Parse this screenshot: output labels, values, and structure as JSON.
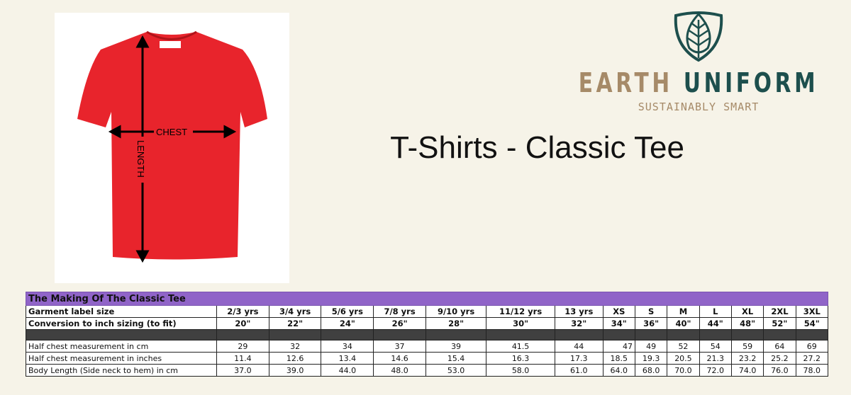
{
  "product_title": "T-Shirts - Classic Tee",
  "brand": {
    "name_part1": "EARTH",
    "name_part2": "UNIFORM",
    "tagline": "SUSTAINABLY SMART",
    "colors": {
      "tan": "#a68a68",
      "teal": "#1d4f4d"
    }
  },
  "garment_image": {
    "chest_label": "CHEST",
    "length_label": "LENGTH",
    "shirt_color": "#e8242c"
  },
  "table": {
    "caption": "The Making Of The Classic Tee",
    "header_color": "#9064c8",
    "rows": [
      {
        "label": "Garment label size",
        "bold": true,
        "values": [
          "2/3 yrs",
          "3/4 yrs",
          "5/6 yrs",
          "7/8 yrs",
          "9/10 yrs",
          "11/12 yrs",
          "13 yrs",
          "XS",
          "S",
          "M",
          "L",
          "XL",
          "2XL",
          "3XL"
        ]
      },
      {
        "label": "Conversion to inch sizing (to fit)",
        "bold": true,
        "values": [
          "20\"",
          "22\"",
          "24\"",
          "26\"",
          "28\"",
          "30\"",
          "32\"",
          "34\"",
          "36\"",
          "40\"",
          "44\"",
          "48\"",
          "52\"",
          "54\""
        ]
      },
      {
        "label": "",
        "divider": true,
        "values": [
          "",
          "",
          "",
          "",
          "",
          "",
          "",
          "",
          "",
          "",
          "",
          "",
          "",
          ""
        ]
      },
      {
        "label": "Half chest measurement in cm",
        "values": [
          "29",
          "32",
          "34",
          "37",
          "39",
          "41.5",
          "44",
          "47",
          "49",
          "52",
          "54",
          "59",
          "64",
          "69"
        ]
      },
      {
        "label": "Half chest measurement in inches",
        "values": [
          "11.4",
          "12.6",
          "13.4",
          "14.6",
          "15.4",
          "16.3",
          "17.3",
          "18.5",
          "19.3",
          "20.5",
          "21.3",
          "23.2",
          "25.2",
          "27.2"
        ]
      },
      {
        "label": "Body Length (Side neck to hem) in cm",
        "values": [
          "37.0",
          "39.0",
          "44.0",
          "48.0",
          "53.0",
          "58.0",
          "61.0",
          "64.0",
          "68.0",
          "70.0",
          "72.0",
          "74.0",
          "76.0",
          "78.0"
        ]
      }
    ]
  }
}
